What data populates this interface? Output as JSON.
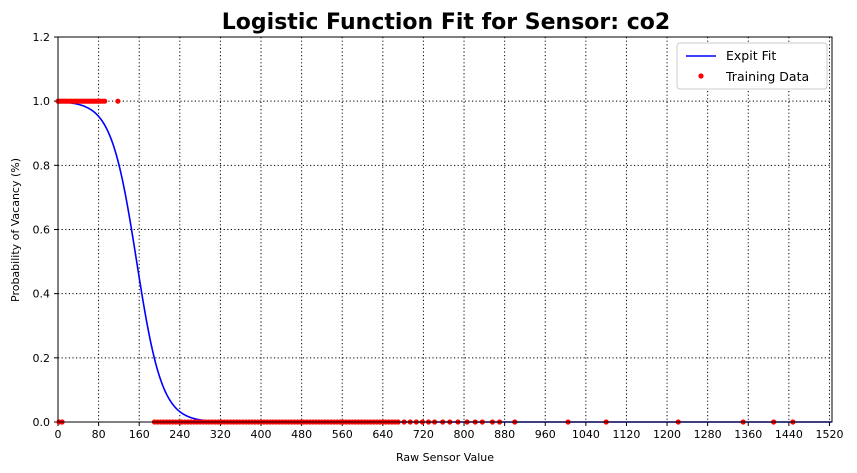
{
  "chart_data": {
    "type": "line+scatter",
    "title": "Logistic Function Fit for Sensor: co2",
    "xlabel": "Raw Sensor Value",
    "ylabel": "Probability of Vacancy (%)",
    "xlim": [
      0,
      1525
    ],
    "ylim": [
      0,
      1.2
    ],
    "x_ticks": [
      0,
      80,
      160,
      240,
      320,
      400,
      480,
      560,
      640,
      720,
      800,
      880,
      960,
      1040,
      1120,
      1200,
      1280,
      1360,
      1440,
      1520
    ],
    "y_ticks": [
      0.0,
      0.2,
      0.4,
      0.6,
      0.8,
      1.0,
      1.2
    ],
    "grid": true,
    "grid_style": "dotted",
    "legend_position": "top-right",
    "series": [
      {
        "name": "Expit Fit",
        "kind": "line",
        "color": "#0000ff",
        "logistic_midpoint": 155,
        "logistic_scale": 25,
        "x_range": [
          0,
          1525
        ]
      },
      {
        "name": "Training Data",
        "kind": "points",
        "color": "#ff0000",
        "points": [
          [
            0,
            1
          ],
          [
            3,
            1
          ],
          [
            6,
            1
          ],
          [
            9,
            1
          ],
          [
            12,
            1
          ],
          [
            15,
            1
          ],
          [
            18,
            1
          ],
          [
            21,
            1
          ],
          [
            24,
            1
          ],
          [
            27,
            1
          ],
          [
            30,
            1
          ],
          [
            33,
            1
          ],
          [
            36,
            1
          ],
          [
            39,
            1
          ],
          [
            42,
            1
          ],
          [
            45,
            1
          ],
          [
            48,
            1
          ],
          [
            51,
            1
          ],
          [
            54,
            1
          ],
          [
            57,
            1
          ],
          [
            60,
            1
          ],
          [
            63,
            1
          ],
          [
            66,
            1
          ],
          [
            69,
            1
          ],
          [
            72,
            1
          ],
          [
            75,
            1
          ],
          [
            78,
            1
          ],
          [
            81,
            1
          ],
          [
            84,
            1
          ],
          [
            88,
            1
          ],
          [
            92,
            1
          ],
          [
            118,
            1
          ],
          [
            2,
            0
          ],
          [
            8,
            0
          ],
          [
            190,
            0
          ],
          [
            196,
            0
          ],
          [
            202,
            0
          ],
          [
            208,
            0
          ],
          [
            214,
            0
          ],
          [
            220,
            0
          ],
          [
            226,
            0
          ],
          [
            232,
            0
          ],
          [
            238,
            0
          ],
          [
            244,
            0
          ],
          [
            250,
            0
          ],
          [
            256,
            0
          ],
          [
            262,
            0
          ],
          [
            268,
            0
          ],
          [
            274,
            0
          ],
          [
            280,
            0
          ],
          [
            286,
            0
          ],
          [
            292,
            0
          ],
          [
            298,
            0
          ],
          [
            304,
            0
          ],
          [
            310,
            0
          ],
          [
            316,
            0
          ],
          [
            322,
            0
          ],
          [
            328,
            0
          ],
          [
            334,
            0
          ],
          [
            340,
            0
          ],
          [
            346,
            0
          ],
          [
            352,
            0
          ],
          [
            358,
            0
          ],
          [
            364,
            0
          ],
          [
            370,
            0
          ],
          [
            376,
            0
          ],
          [
            382,
            0
          ],
          [
            388,
            0
          ],
          [
            394,
            0
          ],
          [
            400,
            0
          ],
          [
            406,
            0
          ],
          [
            412,
            0
          ],
          [
            418,
            0
          ],
          [
            424,
            0
          ],
          [
            430,
            0
          ],
          [
            436,
            0
          ],
          [
            442,
            0
          ],
          [
            448,
            0
          ],
          [
            454,
            0
          ],
          [
            460,
            0
          ],
          [
            466,
            0
          ],
          [
            472,
            0
          ],
          [
            478,
            0
          ],
          [
            484,
            0
          ],
          [
            490,
            0
          ],
          [
            496,
            0
          ],
          [
            502,
            0
          ],
          [
            508,
            0
          ],
          [
            514,
            0
          ],
          [
            520,
            0
          ],
          [
            526,
            0
          ],
          [
            532,
            0
          ],
          [
            538,
            0
          ],
          [
            544,
            0
          ],
          [
            550,
            0
          ],
          [
            556,
            0
          ],
          [
            562,
            0
          ],
          [
            568,
            0
          ],
          [
            574,
            0
          ],
          [
            580,
            0
          ],
          [
            586,
            0
          ],
          [
            592,
            0
          ],
          [
            598,
            0
          ],
          [
            604,
            0
          ],
          [
            610,
            0
          ],
          [
            616,
            0
          ],
          [
            622,
            0
          ],
          [
            628,
            0
          ],
          [
            634,
            0
          ],
          [
            640,
            0
          ],
          [
            646,
            0
          ],
          [
            652,
            0
          ],
          [
            658,
            0
          ],
          [
            664,
            0
          ],
          [
            670,
            0
          ],
          [
            682,
            0
          ],
          [
            694,
            0
          ],
          [
            706,
            0
          ],
          [
            718,
            0
          ],
          [
            730,
            0
          ],
          [
            742,
            0
          ],
          [
            758,
            0
          ],
          [
            772,
            0
          ],
          [
            788,
            0
          ],
          [
            806,
            0
          ],
          [
            822,
            0
          ],
          [
            836,
            0
          ],
          [
            856,
            0
          ],
          [
            870,
            0
          ],
          [
            900,
            0
          ],
          [
            1005,
            0
          ],
          [
            1080,
            0
          ],
          [
            1222,
            0
          ],
          [
            1350,
            0
          ],
          [
            1410,
            0
          ],
          [
            1448,
            0
          ]
        ]
      }
    ]
  }
}
